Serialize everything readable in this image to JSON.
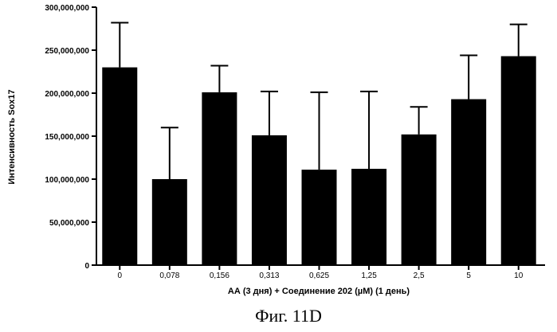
{
  "chart_data": {
    "type": "bar",
    "title": "",
    "xlabel": "АА (3 дня) + Соединение 202 (µM) (1 день)",
    "ylabel": "Интенсивность Sox17",
    "categories": [
      "0",
      "0,078",
      "0,156",
      "0,313",
      "0,625",
      "1,25",
      "2,5",
      "5",
      "10"
    ],
    "values": [
      230000000,
      100000000,
      201000000,
      151000000,
      111000000,
      112000000,
      152000000,
      193000000,
      243000000
    ],
    "error_upper": [
      282000000,
      160000000,
      232000000,
      202000000,
      201000000,
      202000000,
      184000000,
      244000000,
      280000000
    ],
    "ylim": [
      0,
      300000000
    ],
    "yticks": [
      0,
      50000000,
      100000000,
      150000000,
      200000000,
      250000000,
      300000000
    ],
    "ytick_labels": [
      "0",
      "50,000,000",
      "100,000,000",
      "150,000,000",
      "200,000,000",
      "250,000,000",
      "300,000,000"
    ],
    "bar_color": "#000000",
    "grid": false,
    "legend": "none"
  },
  "caption": "Фиг. 11D"
}
